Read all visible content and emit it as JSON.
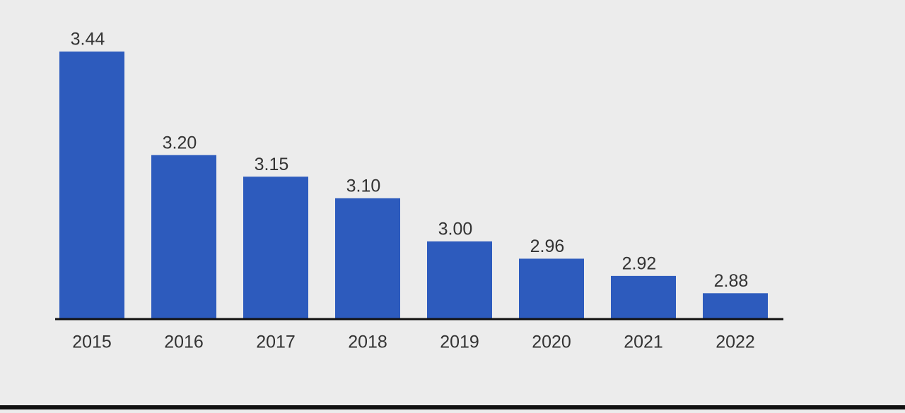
{
  "chart_data": {
    "type": "bar",
    "categories": [
      "2015",
      "2016",
      "2017",
      "2018",
      "2019",
      "2020",
      "2021",
      "2022"
    ],
    "values": [
      3.44,
      3.2,
      3.15,
      3.1,
      3.0,
      2.96,
      2.92,
      2.88
    ],
    "value_labels": [
      "3.44",
      "3.20",
      "3.15",
      "3.10",
      "3.00",
      "2.96",
      "2.92",
      "2.88"
    ],
    "color": "#2d5bbd",
    "ylim": [
      2.82,
      3.44
    ]
  }
}
